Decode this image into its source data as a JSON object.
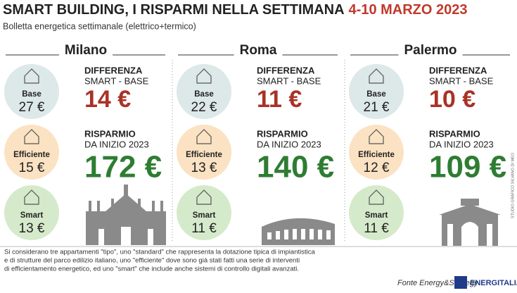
{
  "header": {
    "title": "SMART BUILDING, I RISPARMI NELLA SETTIMANA",
    "title_date": "4-10 MARZO 2023",
    "subtitle": "Bolletta energetica settimanale (elettrico+termico)"
  },
  "labels": {
    "base": "Base",
    "efficiente": "Efficiente",
    "smart": "Smart",
    "difference_title": "DIFFERENZA",
    "difference_sub": "SMART - BASE",
    "savings_title": "RISPARMIO",
    "savings_sub": "DA INIZIO 2023"
  },
  "cities": [
    {
      "name": "Milano",
      "base": "27 €",
      "efficiente": "15 €",
      "smart": "13 €",
      "difference": "14 €",
      "savings": "172 €"
    },
    {
      "name": "Roma",
      "base": "22 €",
      "efficiente": "13 €",
      "smart": "11 €",
      "difference": "11 €",
      "savings": "140 €"
    },
    {
      "name": "Palermo",
      "base": "21 €",
      "efficiente": "12 €",
      "smart": "11 €",
      "difference": "10 €",
      "savings": "109 €"
    }
  ],
  "footer": {
    "note_lines": [
      "Si considerano tre appartamenti \"tipo\", uno \"standard\" che rappresenta la dotazione tipica di impiantistica",
      "e di strutture del parco edilizio italiano, uno \"efficiente\" dove sono già stati fatti una serie di interventi",
      "di efficientamento energetico, ed uno \"smart\" che include anche sistemi di controllo digitali avanzati."
    ],
    "source": "Fonte Energy&Strategy",
    "logo": "ENERGITALIA",
    "credit": "STUDIO GRAFICO SILVANO DI MEO"
  }
}
